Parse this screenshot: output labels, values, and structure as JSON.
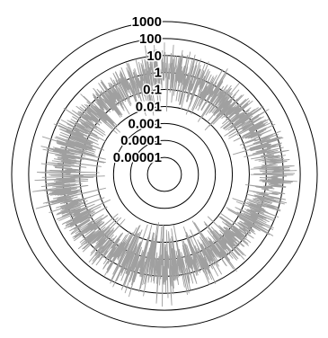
{
  "chart_data": {
    "type": "line",
    "polar": true,
    "radial_scale": "log",
    "radial_ticks": [
      1e-05,
      0.0001,
      0.001,
      0.01,
      0.1,
      1,
      10,
      100,
      1000
    ],
    "radial_tick_labels": [
      "0.00001",
      "0.0001",
      "0.001",
      "0.01",
      "0.1",
      "1",
      "10",
      "100",
      "1000"
    ],
    "rlim": [
      1e-06,
      1000
    ],
    "angular_range_deg": [
      0,
      360
    ],
    "grid": true,
    "series": [
      {
        "color": "#a0a0a0",
        "description_values": "noisy radial trace; envelope approx 0.01–100 with larger amplitude near left and right",
        "envelope": [
          {
            "theta_deg": 0,
            "r_min": 0.01,
            "r_max": 100
          },
          {
            "theta_deg": 45,
            "r_min": 0.01,
            "r_max": 10
          },
          {
            "theta_deg": 90,
            "r_min": 0.1,
            "r_max": 100
          },
          {
            "theta_deg": 135,
            "r_min": 0.01,
            "r_max": 10
          },
          {
            "theta_deg": 180,
            "r_min": 0.001,
            "r_max": 100
          },
          {
            "theta_deg": 225,
            "r_min": 0.01,
            "r_max": 10
          },
          {
            "theta_deg": 270,
            "r_min": 0.01,
            "r_max": 100
          },
          {
            "theta_deg": 315,
            "r_min": 0.01,
            "r_max": 10
          },
          {
            "theta_deg": 360,
            "r_min": 0.01,
            "r_max": 100
          }
        ]
      }
    ],
    "title": "",
    "xlabel": "",
    "ylabel": ""
  }
}
